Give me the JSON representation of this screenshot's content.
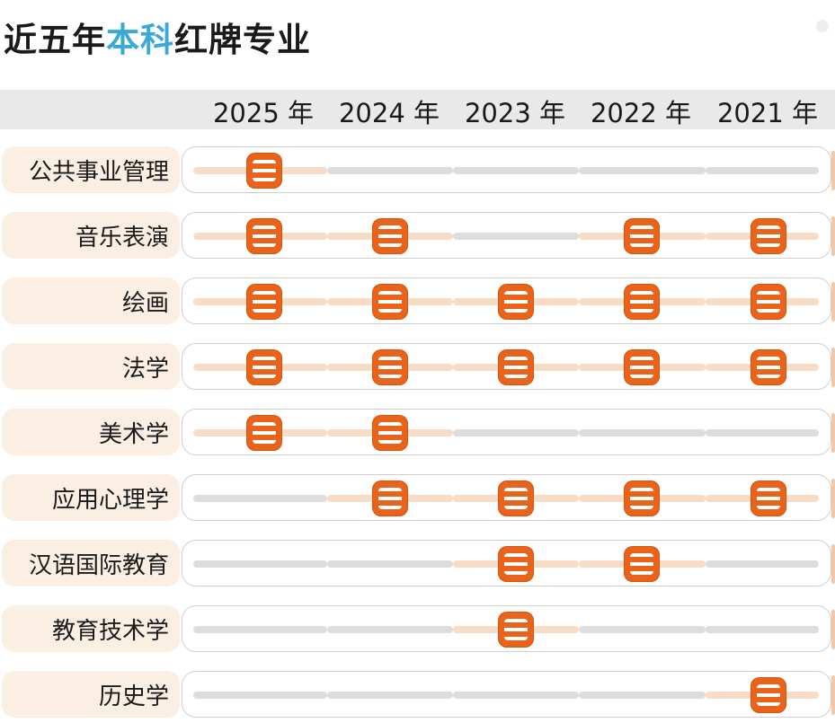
{
  "title": {
    "prefix": "近五年",
    "highlight": "本科",
    "suffix": "红牌专业"
  },
  "colors": {
    "badge": "#e9631b",
    "highlight": "#3aa9d8",
    "active_track": "#f8dcc5",
    "inactive_track": "#dddddd",
    "label_bg": "#fbeee2"
  },
  "chart_data": {
    "type": "table",
    "columns": [
      "2025 年",
      "2024 年",
      "2023 年",
      "2022 年",
      "2021 年"
    ],
    "rows": [
      {
        "label": "公共事业管理",
        "marks": [
          1,
          0,
          0,
          0,
          0
        ]
      },
      {
        "label": "音乐表演",
        "marks": [
          1,
          1,
          0,
          1,
          1
        ]
      },
      {
        "label": "绘画",
        "marks": [
          1,
          1,
          1,
          1,
          1
        ]
      },
      {
        "label": "法学",
        "marks": [
          1,
          1,
          1,
          1,
          1
        ]
      },
      {
        "label": "美术学",
        "marks": [
          1,
          1,
          0,
          0,
          0
        ]
      },
      {
        "label": "应用心理学",
        "marks": [
          0,
          1,
          1,
          1,
          1
        ]
      },
      {
        "label": "汉语国际教育",
        "marks": [
          0,
          0,
          1,
          1,
          0
        ]
      },
      {
        "label": "教育技术学",
        "marks": [
          0,
          0,
          1,
          0,
          0
        ]
      },
      {
        "label": "历史学",
        "marks": [
          0,
          0,
          0,
          0,
          1
        ]
      }
    ],
    "badge_icon": "red-card-badge-icon"
  }
}
